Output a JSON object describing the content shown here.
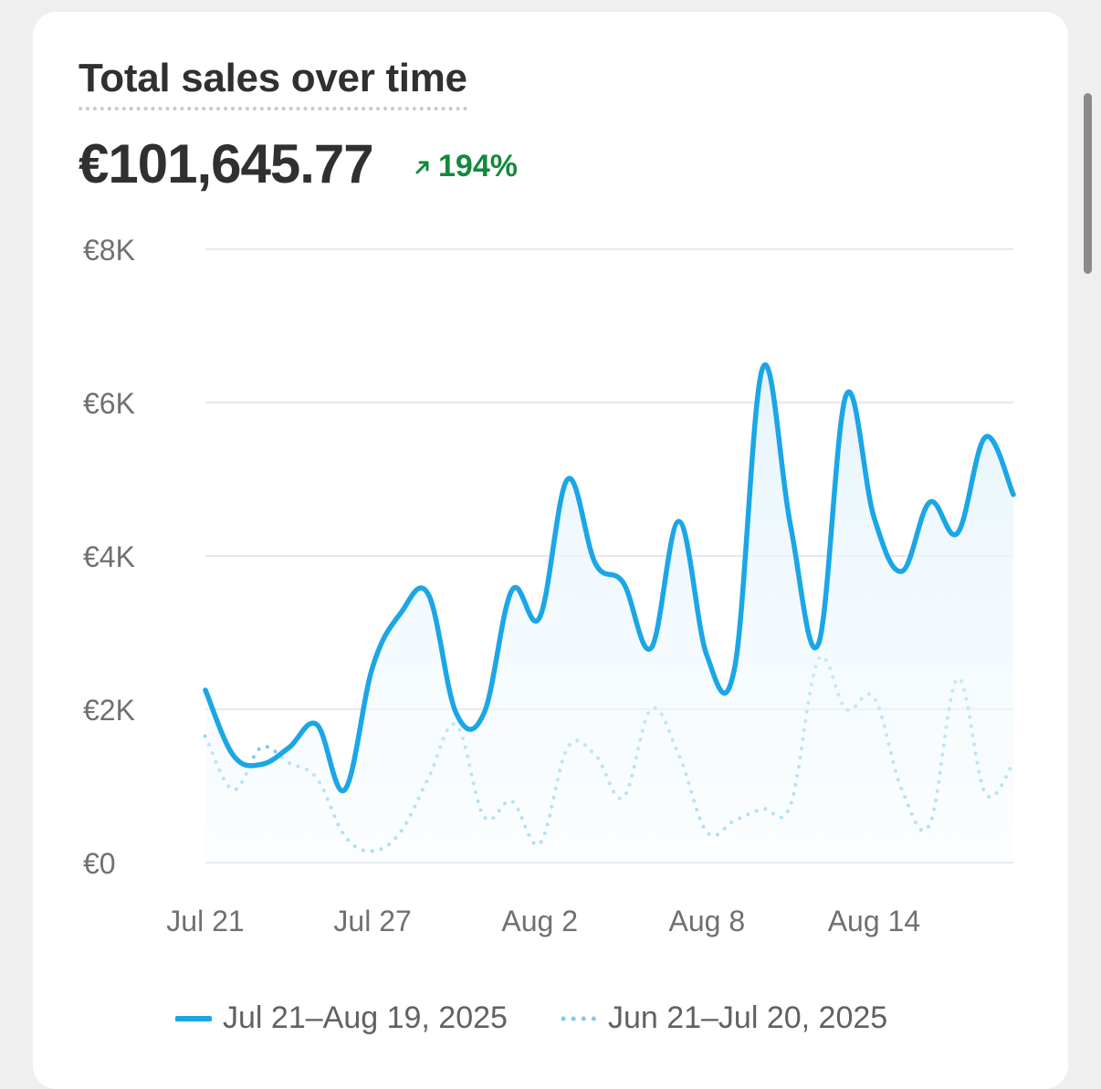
{
  "card": {
    "title": "Total sales over time",
    "total": "€101,645.77",
    "change": "194%",
    "change_direction": "up",
    "change_color": "#14883e",
    "change_icon": "arrow-up-right-icon"
  },
  "colors": {
    "current_series": "#1ba6e6",
    "previous_series": "#7fcbed",
    "grid": "#e6e8ec",
    "axis_text": "#707070",
    "text": "#303030"
  },
  "chart_data": {
    "type": "line",
    "y_ticks": [
      "€8K",
      "€6K",
      "€4K",
      "€2K",
      "€0"
    ],
    "ylim": [
      0,
      8000
    ],
    "x_ticks": [
      "Jul 21",
      "Jul 27",
      "Aug 2",
      "Aug 8",
      "Aug 14"
    ],
    "grid": true,
    "legend_position": "bottom",
    "series": [
      {
        "name": "Jul 21–Aug 19, 2025",
        "style": "solid",
        "color": "#1ba6e6",
        "area_fill": true,
        "x": [
          "Jul 21",
          "Jul 22",
          "Jul 23",
          "Jul 24",
          "Jul 25",
          "Jul 26",
          "Jul 27",
          "Jul 28",
          "Jul 29",
          "Jul 30",
          "Jul 31",
          "Aug 1",
          "Aug 2",
          "Aug 3",
          "Aug 4",
          "Aug 5",
          "Aug 6",
          "Aug 7",
          "Aug 8",
          "Aug 9",
          "Aug 10",
          "Aug 11",
          "Aug 12",
          "Aug 13",
          "Aug 14",
          "Aug 15",
          "Aug 16",
          "Aug 17",
          "Aug 18",
          "Aug 19"
        ],
        "values": [
          2250,
          1400,
          1280,
          1500,
          1800,
          950,
          2550,
          3250,
          3500,
          1950,
          1950,
          3550,
          3200,
          5000,
          3900,
          3650,
          2800,
          4450,
          2700,
          2550,
          6450,
          4400,
          2850,
          6100,
          4500,
          3800,
          4700,
          4300,
          5550,
          4800
        ]
      },
      {
        "name": "Jun 21–Jul 20, 2025",
        "style": "dotted",
        "color": "#7fcbed",
        "x": [
          "Jun 21",
          "Jun 22",
          "Jun 23",
          "Jun 24",
          "Jun 25",
          "Jun 26",
          "Jun 27",
          "Jun 28",
          "Jun 29",
          "Jun 30",
          "Jul 1",
          "Jul 2",
          "Jul 3",
          "Jul 4",
          "Jul 5",
          "Jul 6",
          "Jul 7",
          "Jul 8",
          "Jul 9",
          "Jul 10",
          "Jul 11",
          "Jul 12",
          "Jul 13",
          "Jul 14",
          "Jul 15",
          "Jul 16",
          "Jul 17",
          "Jul 18",
          "Jul 19",
          "Jul 20"
        ],
        "values": [
          1650,
          950,
          1500,
          1300,
          1100,
          350,
          150,
          400,
          1100,
          1800,
          600,
          800,
          250,
          1500,
          1400,
          850,
          2000,
          1400,
          400,
          550,
          700,
          750,
          2650,
          2000,
          2150,
          950,
          500,
          2400,
          900,
          1300
        ]
      }
    ]
  }
}
